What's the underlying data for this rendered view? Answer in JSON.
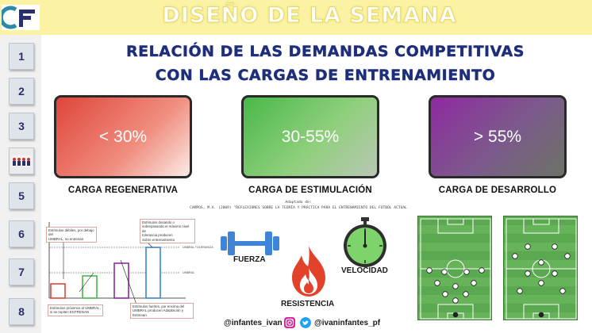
{
  "header": {
    "title": "DISEÑO DE LA SEMANA",
    "logo_text": "CF"
  },
  "nav": [
    {
      "label": "1"
    },
    {
      "label": "2"
    },
    {
      "label": "3"
    },
    {
      "label": ""
    },
    {
      "label": "5"
    },
    {
      "label": "6"
    },
    {
      "label": "7"
    },
    {
      "label": "8"
    }
  ],
  "main": {
    "title_line1": "RELACIÓN DE LAS DEMANDAS COMPETITIVAS",
    "title_line2": "CON LAS CARGAS DE ENTRENAMIENTO"
  },
  "cards": [
    {
      "value": "< 30%",
      "label": "CARGA REGENERATIVA"
    },
    {
      "value": "30-55%",
      "label": "CARGA DE ESTIMULACIÓN"
    },
    {
      "value": "> 55%",
      "label": "CARGA DE DESARROLLO"
    }
  ],
  "citation": {
    "line1": "Adaptado de:",
    "line2": "CAMPOS, M.A. (2009) \"REFLEXIONES SOBRE LA TEORÍA Y PRÁCTICA PARA EL ENTRENAMIENTO DEL FÚTBOL ACTUAL"
  },
  "mini_chart": {
    "notes": [
      "Estímulos débiles, por debajo del\nUMBRAL, no entrenan",
      "Estímulos dosando o\nsobrepasando el máximo nivel de\ntolerancia producen\nSobre entrenamiento",
      "Estímulos próximos al UMBRAL,\nsi se repiten ENTRENAN",
      "Estímulos fuertes, por encima del\nUMBRAL producen Adaptación y\nEntrenan"
    ],
    "line_labels": [
      "UMBRAL TOLERANCIA",
      "UMBRAL"
    ],
    "values": [
      18,
      28,
      44,
      64
    ],
    "colors": [
      "#e0453a",
      "#49b849",
      "#8e2aa0",
      "#3f84d6"
    ]
  },
  "qualities": {
    "strength": "FUERZA",
    "endurance": "RESISTENCIA",
    "speed": "VELOCIDAD"
  },
  "footer": {
    "instagram_handle": "@infantes_ivan",
    "twitter_handle": "@ivaninfantes_pf"
  },
  "colors": {
    "header_bg": "#fbf2a3",
    "title_blue": "#1e2e7a",
    "regenerative": "#e0453a",
    "stimulation": "#49b849",
    "development": "#8e2aa0",
    "icon_blue": "#3f84d6",
    "icon_red": "#e2412a"
  }
}
